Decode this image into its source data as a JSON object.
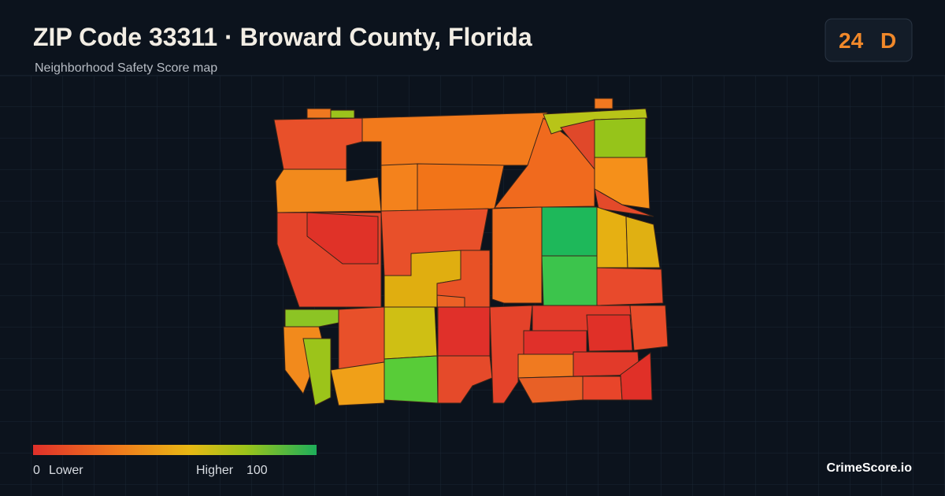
{
  "header": {
    "title": "ZIP Code 33311 · Broward County, Florida",
    "subtitle": "Neighborhood Safety Score map"
  },
  "badge": {
    "score": 24,
    "grade": "D"
  },
  "legend": {
    "min": 0,
    "min_label": "Lower",
    "max_label": "Higher",
    "max": 100
  },
  "footer": {
    "brand": "CrimeScore.io"
  }
}
